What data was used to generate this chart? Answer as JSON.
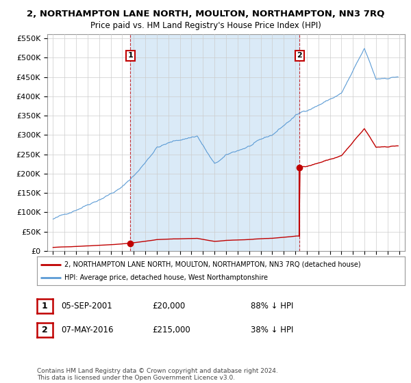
{
  "title": "2, NORTHAMPTON LANE NORTH, MOULTON, NORTHAMPTON, NN3 7RQ",
  "subtitle": "Price paid vs. HM Land Registry's House Price Index (HPI)",
  "legend_line1": "2, NORTHAMPTON LANE NORTH, MOULTON, NORTHAMPTON, NN3 7RQ (detached house)",
  "legend_line2": "HPI: Average price, detached house, West Northamptonshire",
  "transaction1_date": "05-SEP-2001",
  "transaction1_price": "£20,000",
  "transaction1_hpi": "88% ↓ HPI",
  "transaction2_date": "07-MAY-2016",
  "transaction2_price": "£215,000",
  "transaction2_hpi": "38% ↓ HPI",
  "footer": "Contains HM Land Registry data © Crown copyright and database right 2024.\nThis data is licensed under the Open Government Licence v3.0.",
  "hpi_color": "#5b9bd5",
  "hpi_fill_color": "#daeaf7",
  "price_color": "#c00000",
  "background_color": "#ffffff",
  "grid_color": "#cccccc",
  "ylim": [
    0,
    560000
  ],
  "yticks": [
    0,
    50000,
    100000,
    150000,
    200000,
    250000,
    300000,
    350000,
    400000,
    450000,
    500000,
    550000
  ],
  "sale1_year": 2001.708,
  "sale2_year": 2016.375,
  "sale1_price": 20000,
  "sale2_price": 215000,
  "xlim_start": 1994.5,
  "xlim_end": 2025.5
}
